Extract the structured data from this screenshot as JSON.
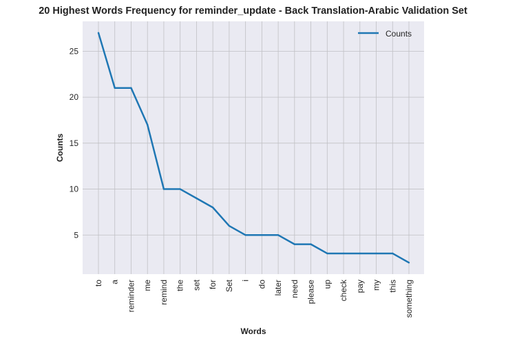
{
  "chart_data": {
    "type": "line",
    "title": "20 Highest Words Frequency for reminder_update - Back Translation-Arabic Validation Set",
    "xlabel": "Words",
    "ylabel": "Counts",
    "categories": [
      "to",
      "a",
      "reminder",
      "me",
      "remind",
      "the",
      "set",
      "for",
      "Set",
      "i",
      "do",
      "later",
      "need",
      "please",
      "up",
      "check",
      "pay",
      "my",
      "this",
      "something"
    ],
    "series": [
      {
        "name": "Counts",
        "values": [
          27,
          21,
          21,
          17,
          10,
          10,
          9,
          8,
          6,
          5,
          5,
          5,
          4,
          4,
          3,
          3,
          3,
          3,
          3,
          2
        ]
      }
    ],
    "yticks": [
      5,
      10,
      15,
      20,
      25
    ],
    "ylim": [
      0.75,
      28.25
    ],
    "grid": true,
    "legend": "top-right",
    "colors": {
      "line": "#1f77b4",
      "plot_bg": "#eaeaf2",
      "grid": "#c0c0c4"
    }
  }
}
